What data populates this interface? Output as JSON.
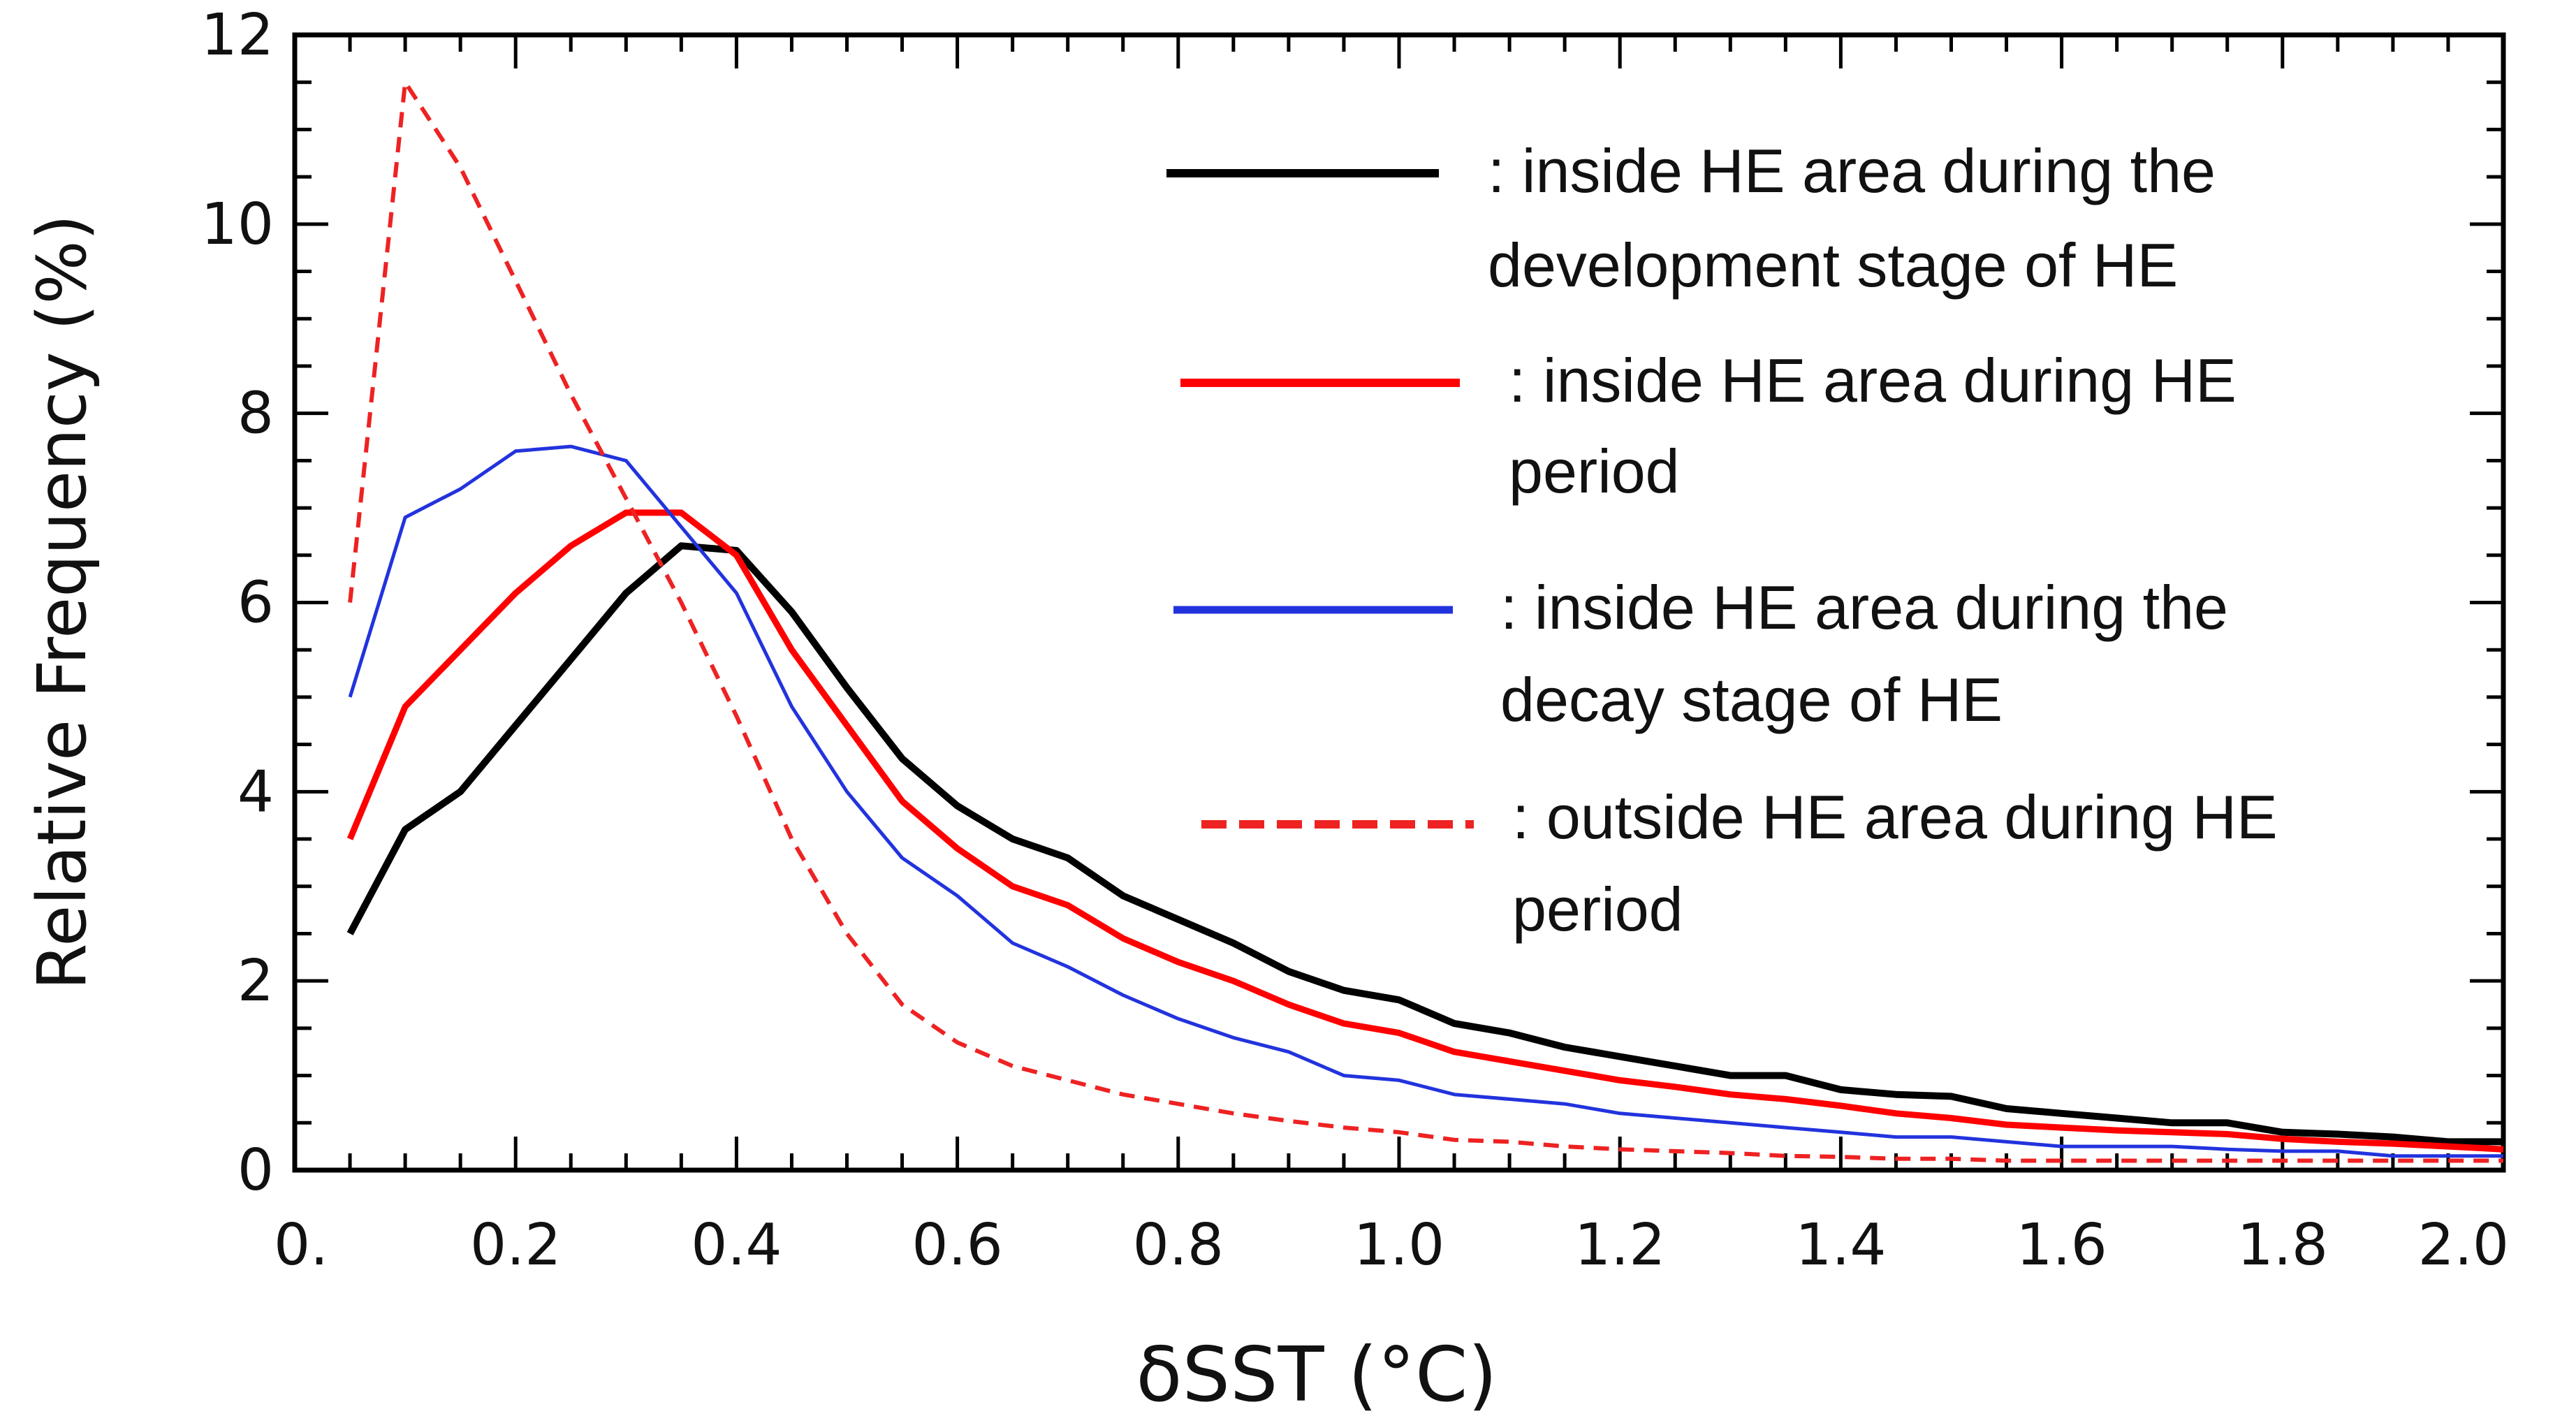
{
  "chart_data": {
    "type": "line",
    "title": "",
    "xlabel": "δSST (°C)",
    "ylabel": "Relative  Frequency  (%)",
    "xlim": [
      0.0,
      2.0
    ],
    "ylim": [
      0,
      12
    ],
    "xticks": [
      0.0,
      0.2,
      0.4,
      0.6,
      0.8,
      1.0,
      1.2,
      1.4,
      1.6,
      1.8,
      2.0
    ],
    "xtick_labels": [
      "0.",
      "0.2",
      "0.4",
      "0.6",
      "0.8",
      "1.0",
      "1.2",
      "1.4",
      "1.6",
      "1.8",
      "2.0"
    ],
    "yticks": [
      0,
      2,
      4,
      6,
      8,
      10,
      12
    ],
    "ytick_labels": [
      "0",
      "2",
      "4",
      "6",
      "8",
      "10",
      "12"
    ],
    "legend_position": "top-right",
    "series": [
      {
        "name": "inside-development",
        "legend_lines": [
          ": inside HE area during the",
          "development stage of HE"
        ],
        "color": "#000000",
        "style": "solid",
        "x": [
          0.05,
          0.1,
          0.15,
          0.2,
          0.25,
          0.3,
          0.35,
          0.4,
          0.45,
          0.5,
          0.55,
          0.6,
          0.65,
          0.7,
          0.75,
          0.8,
          0.85,
          0.9,
          0.95,
          1.0,
          1.05,
          1.1,
          1.15,
          1.2,
          1.25,
          1.3,
          1.35,
          1.4,
          1.45,
          1.5,
          1.55,
          1.6,
          1.65,
          1.7,
          1.75,
          1.8,
          1.85,
          1.9,
          1.95,
          2.0
        ],
        "y": [
          2.5,
          3.6,
          4.0,
          4.7,
          5.4,
          6.1,
          6.6,
          6.55,
          5.9,
          5.1,
          4.35,
          3.85,
          3.5,
          3.3,
          2.9,
          2.65,
          2.4,
          2.1,
          1.9,
          1.8,
          1.55,
          1.45,
          1.3,
          1.2,
          1.1,
          1.0,
          1.0,
          0.85,
          0.8,
          0.78,
          0.65,
          0.6,
          0.55,
          0.5,
          0.5,
          0.4,
          0.38,
          0.35,
          0.3,
          0.3
        ]
      },
      {
        "name": "inside-he-period",
        "legend_lines": [
          ": inside HE area during HE",
          "period"
        ],
        "color": "#ff0000",
        "style": "solid",
        "x": [
          0.05,
          0.1,
          0.15,
          0.2,
          0.25,
          0.3,
          0.35,
          0.4,
          0.45,
          0.5,
          0.55,
          0.6,
          0.65,
          0.7,
          0.75,
          0.8,
          0.85,
          0.9,
          0.95,
          1.0,
          1.05,
          1.1,
          1.15,
          1.2,
          1.25,
          1.3,
          1.35,
          1.4,
          1.45,
          1.5,
          1.55,
          1.6,
          1.65,
          1.7,
          1.75,
          1.8,
          1.85,
          1.9,
          1.95,
          2.0
        ],
        "y": [
          3.5,
          4.9,
          5.5,
          6.1,
          6.6,
          6.95,
          6.95,
          6.5,
          5.5,
          4.7,
          3.9,
          3.4,
          3.0,
          2.8,
          2.45,
          2.2,
          2.0,
          1.75,
          1.55,
          1.45,
          1.25,
          1.15,
          1.05,
          0.95,
          0.88,
          0.8,
          0.75,
          0.68,
          0.6,
          0.55,
          0.48,
          0.45,
          0.42,
          0.4,
          0.38,
          0.33,
          0.3,
          0.28,
          0.25,
          0.22
        ]
      },
      {
        "name": "inside-decay",
        "legend_lines": [
          ": inside HE area during the",
          "decay stage of HE"
        ],
        "color": "#2233dd",
        "style": "solid",
        "x": [
          0.05,
          0.1,
          0.15,
          0.2,
          0.25,
          0.3,
          0.35,
          0.4,
          0.45,
          0.5,
          0.55,
          0.6,
          0.65,
          0.7,
          0.75,
          0.8,
          0.85,
          0.9,
          0.95,
          1.0,
          1.05,
          1.1,
          1.15,
          1.2,
          1.25,
          1.3,
          1.35,
          1.4,
          1.45,
          1.5,
          1.55,
          1.6,
          1.65,
          1.7,
          1.75,
          1.8,
          1.85,
          1.9,
          1.95,
          2.0
        ],
        "y": [
          5.0,
          6.9,
          7.2,
          7.6,
          7.65,
          7.5,
          6.8,
          6.1,
          4.9,
          4.0,
          3.3,
          2.9,
          2.4,
          2.15,
          1.85,
          1.6,
          1.4,
          1.25,
          1.0,
          0.95,
          0.8,
          0.75,
          0.7,
          0.6,
          0.55,
          0.5,
          0.45,
          0.4,
          0.35,
          0.35,
          0.3,
          0.25,
          0.25,
          0.25,
          0.22,
          0.2,
          0.2,
          0.15,
          0.15,
          0.15
        ]
      },
      {
        "name": "outside-he-period",
        "legend_lines": [
          ": outside HE area during HE",
          "period"
        ],
        "color": "#ee2222",
        "style": "dashed",
        "x": [
          0.05,
          0.1,
          0.15,
          0.2,
          0.25,
          0.3,
          0.35,
          0.4,
          0.45,
          0.5,
          0.55,
          0.6,
          0.65,
          0.7,
          0.75,
          0.8,
          0.85,
          0.9,
          0.95,
          1.0,
          1.05,
          1.1,
          1.15,
          1.2,
          1.25,
          1.3,
          1.35,
          1.4,
          1.45,
          1.5,
          1.55,
          1.6,
          1.65,
          1.7,
          1.75,
          1.8,
          1.85,
          1.9,
          1.95,
          2.0
        ],
        "y": [
          6.0,
          11.5,
          10.6,
          9.4,
          8.2,
          7.1,
          6.0,
          4.8,
          3.5,
          2.5,
          1.75,
          1.35,
          1.1,
          0.95,
          0.8,
          0.7,
          0.6,
          0.52,
          0.45,
          0.4,
          0.32,
          0.3,
          0.25,
          0.22,
          0.2,
          0.18,
          0.15,
          0.14,
          0.12,
          0.12,
          0.1,
          0.1,
          0.1,
          0.1,
          0.1,
          0.1,
          0.1,
          0.1,
          0.1,
          0.1
        ]
      }
    ]
  }
}
